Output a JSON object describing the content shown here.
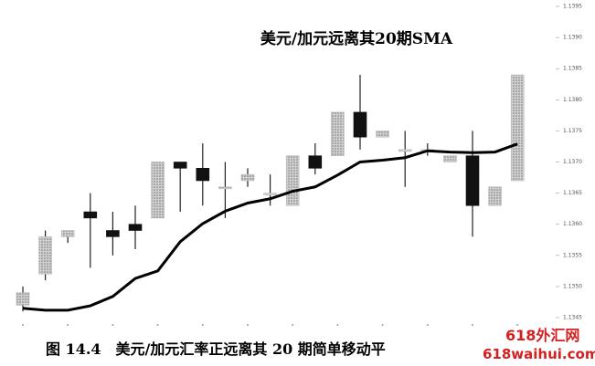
{
  "chart_data": {
    "type": "candlestick",
    "title": "美元/加元远离其20期SMA",
    "caption": "图 14.4　美元/加元汇率正远离其 20 期简单移动平",
    "watermark": {
      "site": "618外汇网",
      "url": "618waihui.com"
    },
    "up_color": "#b9b9b9",
    "down_color": "#111111",
    "open": [
      1.1347,
      1.1352,
      1.1358,
      1.1362,
      1.1359,
      1.136,
      1.1361,
      1.137,
      1.1369,
      1.1366,
      1.1367,
      1.1365,
      1.1363,
      1.1371,
      1.1371,
      1.1378,
      1.1374,
      1.1372,
      1.1372,
      1.137,
      1.1371,
      1.1363,
      1.1367
    ],
    "high": [
      1.135,
      1.1359,
      1.1359,
      1.1365,
      1.1362,
      1.1363,
      1.137,
      1.137,
      1.1373,
      1.137,
      1.1369,
      1.1368,
      1.1371,
      1.1373,
      1.1378,
      1.1384,
      1.1375,
      1.1375,
      1.1373,
      1.1371,
      1.1375,
      1.1366,
      1.1384
    ],
    "low": [
      1.1346,
      1.1351,
      1.1357,
      1.1353,
      1.1355,
      1.1356,
      1.1361,
      1.1362,
      1.1363,
      1.1361,
      1.1366,
      1.1363,
      1.1363,
      1.1368,
      1.1371,
      1.1372,
      1.1374,
      1.1366,
      1.1371,
      1.137,
      1.1358,
      1.1363,
      1.1367
    ],
    "close": [
      1.1349,
      1.1358,
      1.1359,
      1.1361,
      1.1358,
      1.1359,
      1.137,
      1.1369,
      1.1367,
      1.1366,
      1.1368,
      1.1365,
      1.1371,
      1.1369,
      1.1378,
      1.1374,
      1.1375,
      1.1372,
      1.1372,
      1.1371,
      1.1363,
      1.1366,
      1.1384
    ],
    "series": [
      {
        "values": [
          1.13465,
          1.13462,
          1.13462,
          1.13469,
          1.13484,
          1.13513,
          1.13525,
          1.13572,
          1.13601,
          1.13621,
          1.13634,
          1.13641,
          1.13653,
          1.1366,
          1.13679,
          1.137,
          1.13703,
          1.13707,
          1.13718,
          1.13716,
          1.13715,
          1.13716,
          1.13729
        ],
        "color": "#000000"
      }
    ],
    "ylim": [
      1.1345,
      1.1395
    ],
    "yticks": [
      1.1345,
      {
        "value": 1.135,
        "label": "1.1350"
      },
      1.1355,
      {
        "value": 1.136,
        "label": "1.1360"
      },
      1.1365,
      {
        "value": 1.137,
        "label": "1.1370"
      },
      1.1375,
      {
        "value": 1.138,
        "label": "1.1380"
      },
      1.1385,
      {
        "value": 1.139,
        "label": "1.1390"
      },
      1.1395
    ]
  }
}
